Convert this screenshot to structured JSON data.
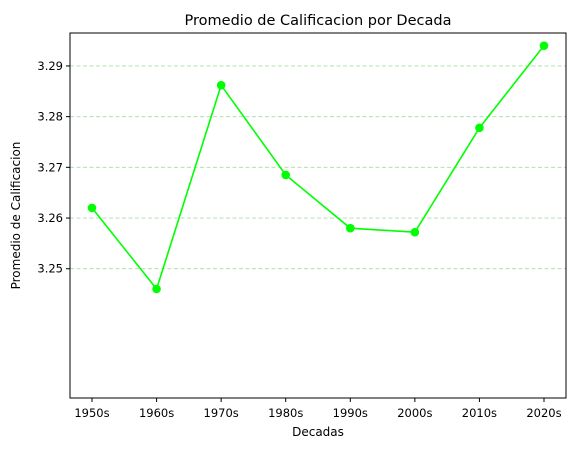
{
  "chart_data": {
    "type": "line",
    "title": "Promedio de Calificacion por Decada",
    "xlabel": "Decadas",
    "ylabel": "Promedio de Calificacion",
    "categories": [
      "1950s",
      "1960s",
      "1970s",
      "1980s",
      "1990s",
      "2000s",
      "2010s",
      "2020s"
    ],
    "series": [
      {
        "values": [
          3.262,
          3.246,
          3.2862,
          3.2685,
          3.258,
          3.2572,
          3.2778,
          3.294
        ],
        "color": "#00ff00"
      }
    ],
    "ylim": [
      3.2245,
      3.2965
    ],
    "yticks": [
      3.25,
      3.26,
      3.27,
      3.28,
      3.29
    ],
    "ytick_labels": [
      "3.25",
      "3.26",
      "3.27",
      "3.28",
      "3.29"
    ],
    "grid": {
      "axis": "y",
      "style": "dashed",
      "color": "#a8dca8"
    },
    "legend": "none"
  }
}
